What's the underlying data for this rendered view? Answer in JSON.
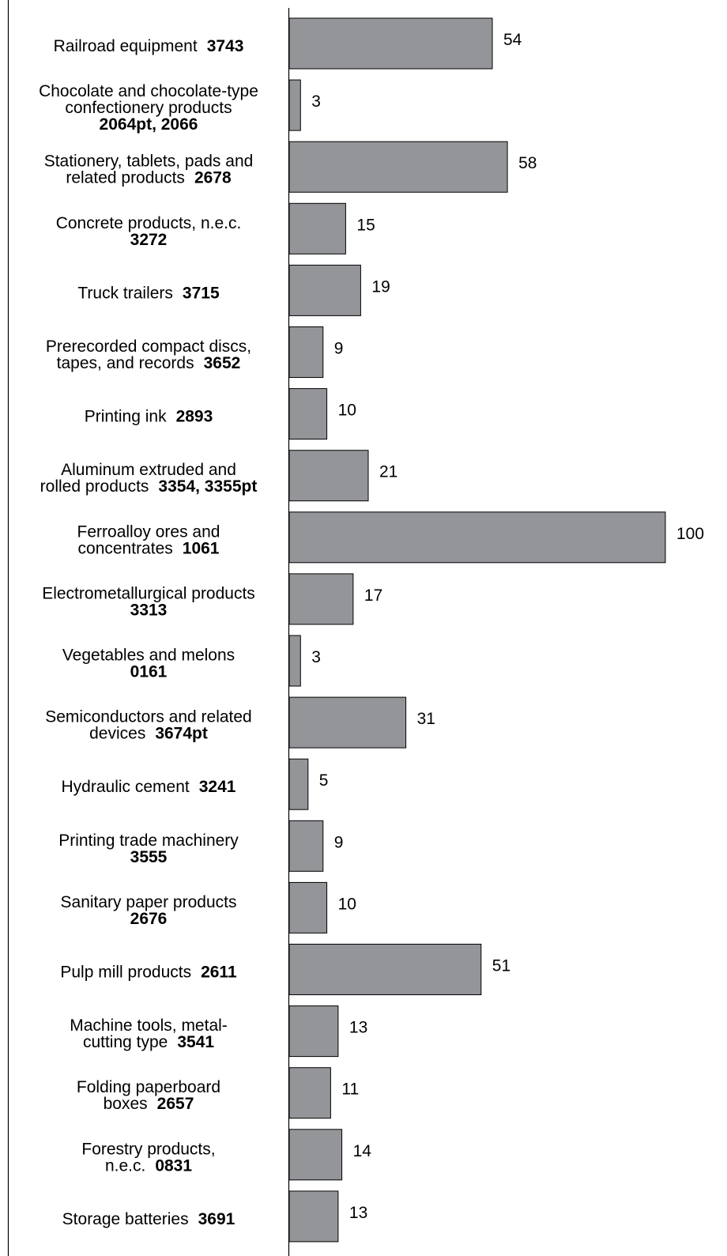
{
  "chart_data": {
    "type": "bar",
    "orientation": "horizontal",
    "title": "",
    "xlabel": "",
    "ylabel": "",
    "xlim": [
      0,
      100
    ],
    "grid": false,
    "legend": "none",
    "bar_color": "#939598",
    "bar_edge_color": "#000000",
    "categories": [
      {
        "lines": [
          {
            "text": "Railroad equipment",
            "code": "3743"
          }
        ]
      },
      {
        "lines": [
          {
            "text": "Chocolate and chocolate-type",
            "code": ""
          },
          {
            "text": "confectionery products",
            "code": ""
          },
          {
            "text": "",
            "code": "2064pt, 2066"
          }
        ]
      },
      {
        "lines": [
          {
            "text": "Stationery, tablets, pads and",
            "code": ""
          },
          {
            "text": "related products",
            "code": "2678"
          }
        ]
      },
      {
        "lines": [
          {
            "text": "Concrete products, n.e.c.",
            "code": ""
          },
          {
            "text": "",
            "code": "3272"
          }
        ]
      },
      {
        "lines": [
          {
            "text": "Truck trailers",
            "code": "3715"
          }
        ]
      },
      {
        "lines": [
          {
            "text": "Prerecorded compact discs,",
            "code": ""
          },
          {
            "text": "tapes, and records",
            "code": "3652"
          }
        ]
      },
      {
        "lines": [
          {
            "text": "Printing ink",
            "code": "2893"
          }
        ]
      },
      {
        "lines": [
          {
            "text": "Aluminum extruded and",
            "code": ""
          },
          {
            "text": "rolled products",
            "code": "3354, 3355pt"
          }
        ]
      },
      {
        "lines": [
          {
            "text": "Ferroalloy ores and",
            "code": ""
          },
          {
            "text": "concentrates",
            "code": "1061"
          }
        ]
      },
      {
        "lines": [
          {
            "text": "Electrometallurgical products",
            "code": ""
          },
          {
            "text": "",
            "code": "3313"
          }
        ]
      },
      {
        "lines": [
          {
            "text": "Vegetables and melons",
            "code": ""
          },
          {
            "text": "",
            "code": "0161"
          }
        ]
      },
      {
        "lines": [
          {
            "text": "Semiconductors and related",
            "code": ""
          },
          {
            "text": "devices",
            "code": "3674pt"
          }
        ]
      },
      {
        "lines": [
          {
            "text": "Hydraulic cement",
            "code": "3241"
          }
        ]
      },
      {
        "lines": [
          {
            "text": "Printing trade machinery",
            "code": ""
          },
          {
            "text": "",
            "code": "3555"
          }
        ]
      },
      {
        "lines": [
          {
            "text": "Sanitary paper products",
            "code": ""
          },
          {
            "text": "",
            "code": "2676"
          }
        ]
      },
      {
        "lines": [
          {
            "text": "Pulp mill products",
            "code": "2611"
          }
        ]
      },
      {
        "lines": [
          {
            "text": "Machine tools, metal-",
            "code": ""
          },
          {
            "text": "cutting type",
            "code": "3541"
          }
        ]
      },
      {
        "lines": [
          {
            "text": "Folding paperboard",
            "code": ""
          },
          {
            "text": "boxes",
            "code": "2657"
          }
        ]
      },
      {
        "lines": [
          {
            "text": "Forestry products,",
            "code": ""
          },
          {
            "text": "n.e.c.",
            "code": "0831"
          }
        ]
      },
      {
        "lines": [
          {
            "text": "Storage batteries",
            "code": "3691"
          }
        ]
      }
    ],
    "values": [
      54,
      3,
      58,
      15,
      19,
      9,
      10,
      21,
      100,
      17,
      3,
      31,
      5,
      9,
      10,
      51,
      13,
      11,
      14,
      13
    ],
    "value_labels": [
      "54",
      "3",
      "58",
      "15",
      "19",
      "9",
      "10",
      "21",
      "100",
      "17",
      "3",
      "31",
      "5",
      "9",
      "10",
      "51",
      "13",
      "11",
      "14",
      "13"
    ]
  }
}
